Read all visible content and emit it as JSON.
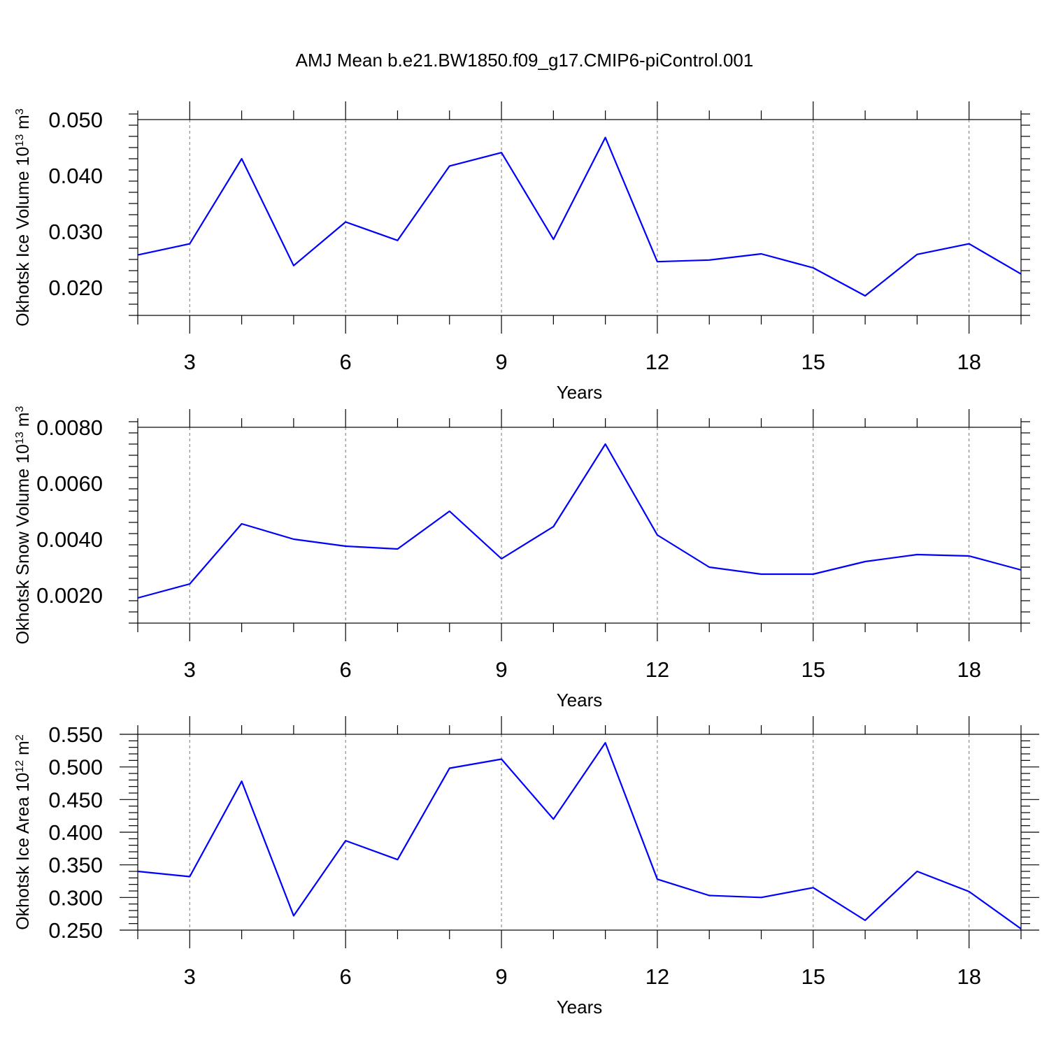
{
  "figure": {
    "title": "AMJ Mean b.e21.BW1850.f09_g17.CMIP6-piControl.001"
  },
  "chart_data": [
    {
      "type": "line",
      "title": "AMJ Mean b.e21.BW1850.f09_g17.CMIP6-piControl.001",
      "xlabel": "Years",
      "ylabel": {
        "text": "Okhotsk Ice Volume 10",
        "sup": "13",
        "unit": " m",
        "unit_sup": "3"
      },
      "xlim": [
        2,
        19
      ],
      "ylim": [
        0.015,
        0.05
      ],
      "x_ticks": [
        3,
        6,
        9,
        12,
        15,
        18
      ],
      "y_ticks": [
        0.02,
        0.03,
        0.04,
        0.05
      ],
      "y_tick_labels": [
        "0.020",
        "0.030",
        "0.040",
        "0.050"
      ],
      "y_minor_step": 0.002,
      "x_minor_step": 1,
      "grid": "vertical-dashed",
      "color": "#0000ff",
      "x": [
        2,
        3,
        4,
        5,
        6,
        7,
        8,
        9,
        10,
        11,
        12,
        13,
        14,
        15,
        16,
        17,
        18,
        19
      ],
      "series": [
        {
          "values": [
            0.0258,
            0.0278,
            0.043,
            0.0239,
            0.0317,
            0.0284,
            0.0417,
            0.0441,
            0.0286,
            0.0468,
            0.0246,
            0.0249,
            0.026,
            0.0235,
            0.0185,
            0.0259,
            0.0278,
            0.0224
          ]
        }
      ]
    },
    {
      "type": "line",
      "xlabel": "Years",
      "ylabel": {
        "text": "Okhotsk Snow Volume 10",
        "sup": "13",
        "unit": " m",
        "unit_sup": "3"
      },
      "xlim": [
        2,
        19
      ],
      "ylim": [
        0.001,
        0.008
      ],
      "x_ticks": [
        3,
        6,
        9,
        12,
        15,
        18
      ],
      "y_ticks": [
        0.002,
        0.004,
        0.006,
        0.008
      ],
      "y_tick_labels": [
        "0.0020",
        "0.0040",
        "0.0060",
        "0.0080"
      ],
      "y_minor_step": 0.0004,
      "x_minor_step": 1,
      "grid": "vertical-dashed",
      "color": "#0000ff",
      "x": [
        2,
        3,
        4,
        5,
        6,
        7,
        8,
        9,
        10,
        11,
        12,
        13,
        14,
        15,
        16,
        17,
        18,
        19
      ],
      "series": [
        {
          "values": [
            0.0019,
            0.0024,
            0.00455,
            0.004,
            0.00375,
            0.00365,
            0.005,
            0.0033,
            0.00445,
            0.0074,
            0.00415,
            0.003,
            0.00275,
            0.00275,
            0.0032,
            0.00345,
            0.0034,
            0.0029
          ]
        }
      ]
    },
    {
      "type": "line",
      "xlabel": "Years",
      "ylabel": {
        "text": "Okhotsk Ice Area 10",
        "sup": "12",
        "unit": " m",
        "unit_sup": "2"
      },
      "xlim": [
        2,
        19
      ],
      "ylim": [
        0.25,
        0.55
      ],
      "x_ticks": [
        3,
        6,
        9,
        12,
        15,
        18
      ],
      "y_ticks": [
        0.25,
        0.3,
        0.35,
        0.4,
        0.45,
        0.5,
        0.55
      ],
      "y_tick_labels": [
        "0.250",
        "0.300",
        "0.350",
        "0.400",
        "0.450",
        "0.500",
        "0.550"
      ],
      "y_minor_step": 0.01,
      "x_minor_step": 1,
      "grid": "vertical-dashed",
      "color": "#0000ff",
      "x": [
        2,
        3,
        4,
        5,
        6,
        7,
        8,
        9,
        10,
        11,
        12,
        13,
        14,
        15,
        16,
        17,
        18,
        19
      ],
      "series": [
        {
          "values": [
            0.34,
            0.332,
            0.478,
            0.272,
            0.387,
            0.358,
            0.498,
            0.512,
            0.42,
            0.537,
            0.328,
            0.303,
            0.3,
            0.315,
            0.265,
            0.34,
            0.309,
            0.252
          ]
        }
      ]
    }
  ]
}
